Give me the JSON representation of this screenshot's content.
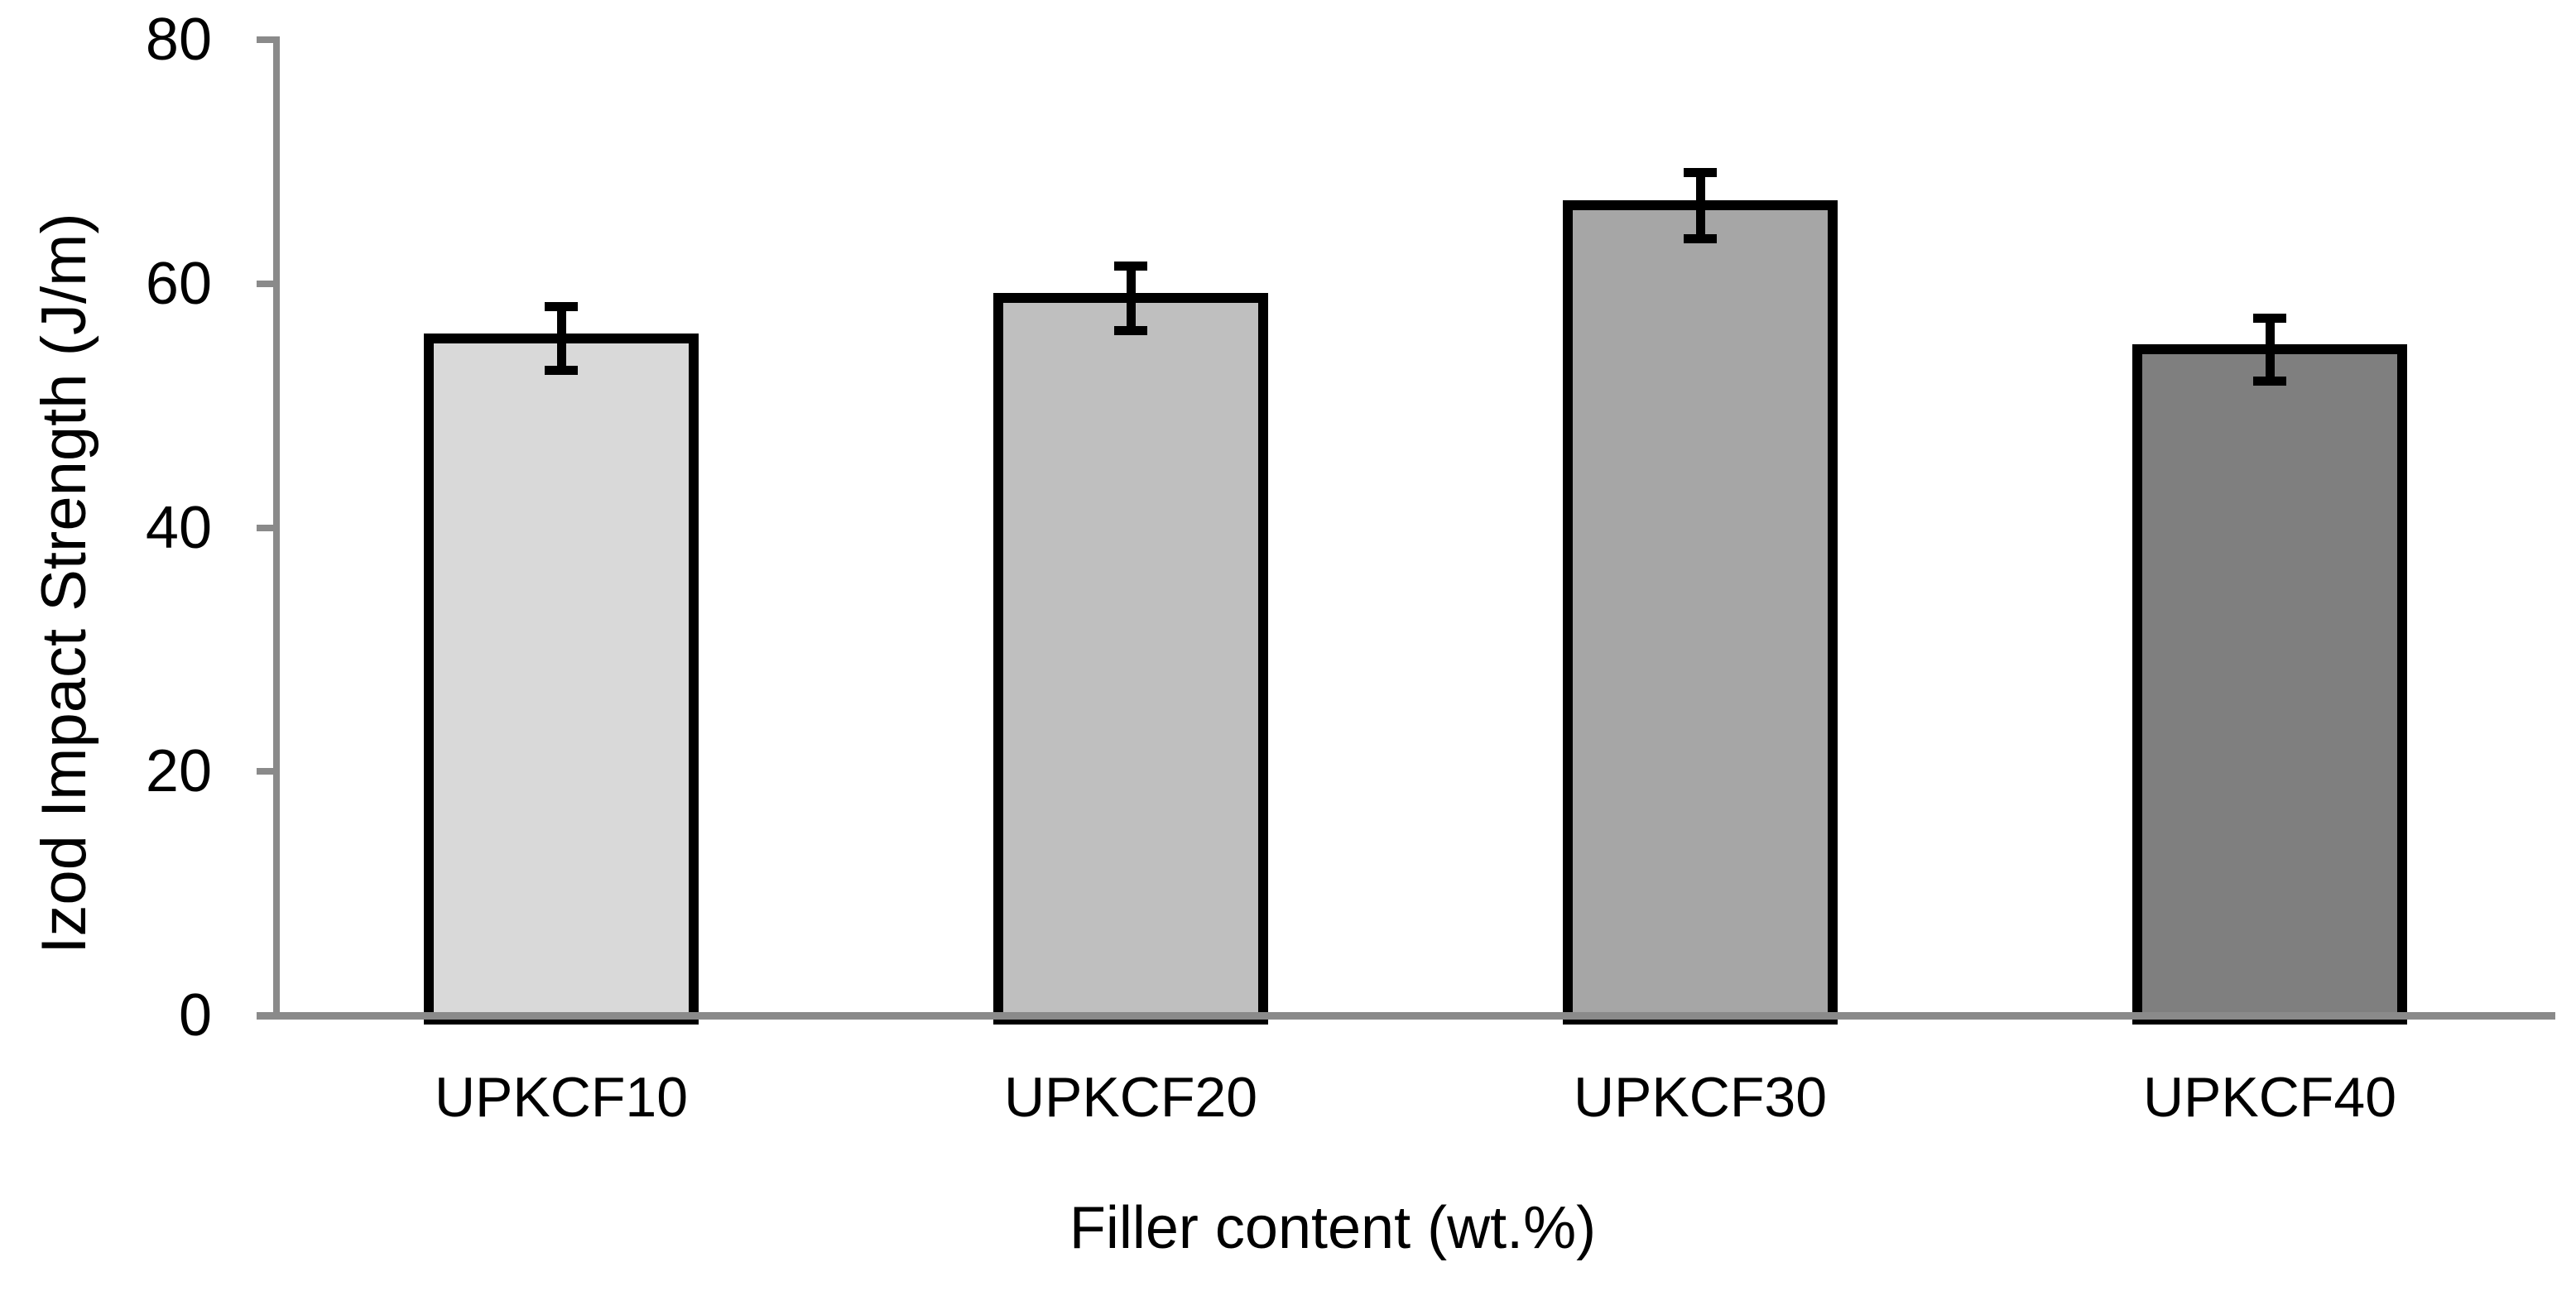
{
  "chart_data": {
    "type": "bar",
    "title": "",
    "xlabel": "Filler content (wt.%)",
    "ylabel": "Izod Impact Strength (J/m)",
    "categories": [
      "UPKCF10",
      "UPKCF20",
      "UPKCF30",
      "UPKCF40"
    ],
    "series": [
      {
        "name": "Izod Impact Strength",
        "values": [
          55.5,
          58.8,
          66.4,
          54.6
        ],
        "errors": [
          2.6,
          2.65,
          2.7,
          2.6
        ]
      }
    ],
    "ylim": [
      0,
      80
    ],
    "yticks": [
      0,
      20,
      40,
      60,
      80
    ],
    "grid": "off",
    "legend": "none",
    "colors": {
      "bar_fills": [
        "#d9d9d9",
        "#bfbfbf",
        "#a6a6a6",
        "#7f7f7f"
      ],
      "bar_border": "#000000",
      "error_bar": "#000000",
      "axis": "#8a8a8a",
      "text": "#000000",
      "background": "#ffffff"
    }
  }
}
